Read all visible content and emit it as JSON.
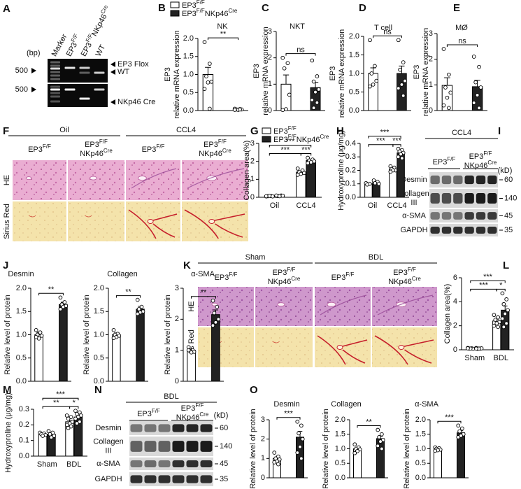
{
  "gel": {
    "panel": "A",
    "unit": "(bp)",
    "lanes": [
      [
        "Marker"
      ],
      [
        "EP3",
        "F/F"
      ],
      [
        "EP3",
        "F/F",
        "NKp46",
        "Cre"
      ],
      [
        "WT"
      ]
    ],
    "size_labels": [
      "500",
      "500"
    ],
    "band_labels": [
      "EP3 Flox",
      "WT",
      "NKp46 Cre"
    ]
  },
  "histology": [
    {
      "panel": "F",
      "groups": [
        "Oil",
        "CCL4"
      ],
      "columns": [
        [
          "EP3",
          "F/F"
        ],
        [
          "EP3",
          "F/F",
          "NKp46",
          "Cre"
        ],
        [
          "EP3",
          "F/F"
        ],
        [
          "EP3",
          "F/F",
          "NKp46",
          "Cre"
        ]
      ],
      "rows": [
        "HE",
        "Sirius Red"
      ]
    },
    {
      "panel": "K",
      "groups": [
        "Sham",
        "BDL"
      ],
      "columns": [
        [
          "EP3",
          "F/F"
        ],
        [
          "EP3",
          "F/F",
          "NKp46",
          "Cre"
        ],
        [
          "EP3",
          "F/F"
        ],
        [
          "EP3",
          "F/F",
          "NKp46",
          "Cre"
        ]
      ],
      "rows": [
        "HE",
        "Sirius Red"
      ]
    }
  ],
  "blots": [
    {
      "panel": "I",
      "group": "CCL4",
      "columns": [
        [
          "EP3",
          "F/F"
        ],
        [
          "EP3",
          "F/F",
          "NKp46",
          "Cre"
        ]
      ],
      "unit": "(kD)",
      "rows": [
        [
          "Desmin"
        ],
        [
          "Collagen",
          "III"
        ],
        [
          "α-SMA"
        ],
        [
          "GAPDH"
        ]
      ],
      "markers": [
        "60",
        "140",
        "45",
        "35"
      ]
    },
    {
      "panel": "N",
      "group": "BDL",
      "columns": [
        [
          "EP3",
          "F/F"
        ],
        [
          "EP3",
          "F/F",
          "NKp46",
          "Cre"
        ]
      ],
      "unit": "(kD)",
      "rows": [
        [
          "Desmin"
        ],
        [
          "Collagen",
          "III"
        ],
        [
          "α-SMA"
        ],
        [
          "GAPDH"
        ]
      ],
      "markers": [
        "60",
        "140",
        "45",
        "35"
      ]
    }
  ],
  "chart_data": [
    {
      "type": "bar",
      "panel": "B",
      "title": "NK",
      "ylabel": [
        "EP3",
        "relative mRNA expression"
      ],
      "legend": [
        [
          "EP3",
          "F/F"
        ],
        [
          "EP3",
          "F/F",
          "NKp46",
          "Cre"
        ]
      ],
      "ylim": [
        0,
        2
      ],
      "yticks": [
        {
          "value": 0,
          "label": "0.0"
        },
        0.5,
        {
          "value": 1,
          "label": "1.0"
        },
        1.5,
        {
          "value": 2,
          "label": "2.0"
        }
      ],
      "series": [
        {
          "color": "#ffffff",
          "values": [
            1.0
          ],
          "errors": [
            0.2
          ],
          "points": [
            [
              1.9,
              1.3,
              0.95,
              0.8,
              0.78,
              0.6,
              0.05
            ]
          ]
        },
        {
          "color": "#222222",
          "values": [
            0.03
          ],
          "errors": [
            0.01
          ],
          "points": [
            [
              0.05,
              0.04,
              0.03,
              0.03,
              0.02,
              0.02,
              0.03
            ]
          ]
        }
      ],
      "annotations": [
        "**"
      ]
    },
    {
      "type": "bar",
      "title": "NKT",
      "ylabel": [
        "EP3",
        "relative mRNA expression"
      ],
      "panel": "C",
      "ylim": [
        0,
        3
      ],
      "yticks": [
        0,
        1,
        2,
        3
      ],
      "series": [
        {
          "color": "#ffffff",
          "values": [
            1.0
          ],
          "errors": [
            0.35
          ],
          "points": [
            [
              2.0,
              1.8,
              1.6,
              0.6,
              0.05,
              0.02
            ]
          ]
        },
        {
          "color": "#222222",
          "values": [
            0.87
          ],
          "errors": [
            0.2
          ],
          "points": [
            [
              1.9,
              1.3,
              1.1,
              0.8,
              0.7,
              0.4,
              0.3,
              0.1
            ]
          ]
        }
      ],
      "annotations": [
        "ns"
      ]
    },
    {
      "type": "bar",
      "title": "T cell",
      "ylabel": [
        "EP3",
        "relative mRNA expression"
      ],
      "panel": "D",
      "ylim": [
        0,
        2
      ],
      "yticks": [
        {
          "value": 0,
          "label": "0.0"
        },
        0.5,
        {
          "value": 1,
          "label": "1.0"
        },
        1.5,
        {
          "value": 2,
          "label": "2.0"
        }
      ],
      "series": [
        {
          "color": "#ffffff",
          "values": [
            1.0
          ],
          "errors": [
            0.15
          ],
          "points": [
            [
              1.9,
              1.2,
              1.0,
              0.8,
              0.7,
              0.65
            ]
          ]
        },
        {
          "color": "#222222",
          "values": [
            1.0
          ],
          "errors": [
            0.2
          ],
          "points": [
            [
              1.9,
              1.3,
              1.1,
              0.8,
              0.7,
              0.6,
              0.4
            ]
          ]
        }
      ],
      "annotations": [
        "ns"
      ]
    },
    {
      "type": "bar",
      "title": "MØ",
      "ylabel": [
        "EP3",
        "relative mRNA expression"
      ],
      "panel": "E",
      "ylim": [
        0,
        3
      ],
      "yticks": [
        0,
        1,
        2,
        3
      ],
      "series": [
        {
          "color": "#ffffff",
          "values": [
            0.98
          ],
          "errors": [
            0.3
          ],
          "points": [
            [
              2.4,
              1.4,
              0.9,
              0.7,
              0.5,
              0.2,
              0.1
            ]
          ]
        },
        {
          "color": "#222222",
          "values": [
            0.93
          ],
          "errors": [
            0.25
          ],
          "points": [
            [
              2.1,
              1.7,
              1.1,
              0.9,
              0.6,
              0.3,
              0.1
            ]
          ]
        }
      ],
      "annotations": [
        "ns"
      ]
    },
    {
      "type": "bar",
      "panel": "G",
      "ylabel": [
        "Collagen area(%)"
      ],
      "legend": [
        [
          "EP3",
          "F/F"
        ],
        [
          "EP3",
          "F/F",
          "NKp46",
          "Cre"
        ]
      ],
      "categories": [
        "Oil",
        "CCL4"
      ],
      "ylim": [
        0,
        3
      ],
      "yticks": [
        0,
        1,
        2,
        3
      ],
      "series": [
        {
          "color": "#ffffff",
          "values": [
            0.06,
            1.4
          ],
          "errors": [
            0.01,
            0.06
          ],
          "points": [
            [
              0.05,
              0.07,
              0.06,
              0.05,
              0.08,
              0.06
            ],
            [
              1.6,
              1.5,
              1.4,
              1.35,
              1.3,
              1.25
            ]
          ]
        },
        {
          "color": "#222222",
          "values": [
            0.08,
            2.05
          ],
          "errors": [
            0.01,
            0.05
          ],
          "points": [
            [
              0.08,
              0.1,
              0.07,
              0.09,
              0.06,
              0.1
            ],
            [
              2.2,
              2.1,
              2.05,
              2.0,
              1.95,
              1.9
            ]
          ]
        }
      ],
      "annotations": [
        "***",
        "***",
        "***"
      ]
    },
    {
      "type": "bar",
      "panel": "H",
      "ylabel": [
        "Hydroxyproline (μg/mg)"
      ],
      "categories": [
        "Oil",
        "CCL4"
      ],
      "ylim": [
        0,
        0.4
      ],
      "yticks": [
        {
          "value": 0,
          "label": "0.0"
        },
        0.1,
        0.2,
        0.3,
        0.4
      ],
      "series": [
        {
          "color": "#ffffff",
          "values": [
            0.1,
            0.21
          ],
          "errors": [
            0.005,
            0.01
          ],
          "points": [
            [
              0.105,
              0.1,
              0.095
            ],
            [
              0.23,
              0.22,
              0.21,
              0.2,
              0.2,
              0.19
            ]
          ]
        },
        {
          "color": "#222222",
          "values": [
            0.11,
            0.33
          ],
          "errors": [
            0.01,
            0.01
          ],
          "points": [
            [
              0.125,
              0.115,
              0.105,
              0.1
            ],
            [
              0.36,
              0.35,
              0.34,
              0.33,
              0.32,
              0.3,
              0.29
            ]
          ]
        }
      ],
      "annotations": [
        "***",
        "***",
        "***"
      ]
    },
    {
      "type": "bar",
      "panel": "J",
      "title": "Desmin",
      "ylabel": [
        "Relative level of protein"
      ],
      "ylim": [
        0,
        2
      ],
      "yticks": [
        {
          "value": 0,
          "label": "0.0"
        },
        0.5,
        {
          "value": 1,
          "label": "1.0"
        },
        1.5,
        {
          "value": 2,
          "label": "2.0"
        }
      ],
      "series": [
        {
          "color": "#ffffff",
          "values": [
            1.0
          ],
          "errors": [
            0.05
          ],
          "points": [
            [
              1.1,
              1.05,
              1.0,
              0.98,
              0.92,
              0.95
            ]
          ]
        },
        {
          "color": "#222222",
          "values": [
            1.65
          ],
          "errors": [
            0.05
          ],
          "points": [
            [
              1.8,
              1.7,
              1.65,
              1.62,
              1.6,
              1.55
            ]
          ]
        }
      ],
      "annotations": [
        "**"
      ]
    },
    {
      "type": "bar",
      "title": "Collagen",
      "ylabel": [
        "Relative level of protein"
      ],
      "ylim": [
        0,
        2
      ],
      "yticks": [
        {
          "value": 0,
          "label": "0.0"
        },
        0.5,
        {
          "value": 1,
          "label": "1.0"
        },
        1.5,
        {
          "value": 2,
          "label": "2.0"
        }
      ],
      "series": [
        {
          "color": "#ffffff",
          "values": [
            1.0
          ],
          "errors": [
            0.04
          ],
          "points": [
            [
              1.1,
              1.02,
              1.0,
              0.98,
              0.95,
              0.93
            ]
          ]
        },
        {
          "color": "#222222",
          "values": [
            1.55
          ],
          "errors": [
            0.06
          ],
          "points": [
            [
              1.75,
              1.6,
              1.55,
              1.5,
              1.48,
              1.45
            ]
          ]
        }
      ],
      "annotations": [
        "**"
      ]
    },
    {
      "type": "bar",
      "title": "α-SMA",
      "ylabel": [
        "Relative level of protein"
      ],
      "ylim": [
        0,
        3
      ],
      "yticks": [
        0,
        1,
        2,
        3
      ],
      "series": [
        {
          "color": "#ffffff",
          "values": [
            1.0
          ],
          "errors": [
            0.04
          ],
          "points": [
            [
              1.1,
              1.0,
              0.98,
              0.95,
              0.93,
              1.0
            ]
          ]
        },
        {
          "color": "#222222",
          "values": [
            2.15
          ],
          "errors": [
            0.15
          ],
          "points": [
            [
              2.6,
              2.4,
              2.2,
              2.0,
              1.9,
              1.8
            ]
          ]
        }
      ],
      "annotations": [
        "**"
      ]
    },
    {
      "type": "bar",
      "panel": "L",
      "ylabel": [
        "Collagen area(%)"
      ],
      "categories": [
        "Sham",
        "BDL"
      ],
      "ylim": [
        0,
        6
      ],
      "yticks": [
        0,
        2,
        4,
        6
      ],
      "series": [
        {
          "color": "#ffffff",
          "values": [
            0.1,
            2.4
          ],
          "errors": [
            0.02,
            0.15
          ],
          "points": [
            [
              0.15,
              0.12,
              0.1,
              0.08,
              0.1,
              0.12
            ],
            [
              2.9,
              2.7,
              2.5,
              2.3,
              2.2,
              2.0,
              1.9
            ]
          ]
        },
        {
          "color": "#222222",
          "values": [
            0.1,
            3.3
          ],
          "errors": [
            0.02,
            0.35
          ],
          "points": [
            [
              0.15,
              0.1,
              0.08,
              0.12,
              0.1,
              0.1
            ],
            [
              4.7,
              4.2,
              3.8,
              3.3,
              3.0,
              2.6,
              2.2,
              1.9
            ]
          ]
        }
      ],
      "annotations": [
        "***",
        "***",
        "*"
      ]
    },
    {
      "type": "bar",
      "panel": "M",
      "ylabel": [
        "Hydroxyproline (μg/mg)"
      ],
      "categories": [
        "Sham",
        "BDL"
      ],
      "ylim": [
        0,
        0.3
      ],
      "yticks": [
        {
          "value": 0,
          "label": "0.0"
        },
        0.1,
        0.2,
        0.3
      ],
      "series": [
        {
          "color": "#ffffff",
          "values": [
            0.14,
            0.22
          ],
          "errors": [
            0.005,
            0.01
          ],
          "points": [
            [
              0.15,
              0.145,
              0.14,
              0.135,
              0.13
            ],
            [
              0.26,
              0.25,
              0.24,
              0.22,
              0.21,
              0.2,
              0.19,
              0.18
            ]
          ]
        },
        {
          "color": "#222222",
          "values": [
            0.14,
            0.25
          ],
          "errors": [
            0.01,
            0.01
          ],
          "points": [
            [
              0.16,
              0.15,
              0.14,
              0.13,
              0.12
            ],
            [
              0.29,
              0.28,
              0.27,
              0.26,
              0.25,
              0.24,
              0.22,
              0.21
            ]
          ]
        }
      ],
      "annotations": [
        "***",
        "**",
        "*"
      ]
    },
    {
      "type": "bar",
      "panel": "O",
      "title": "Desmin",
      "ylabel": [
        "Relative level of protein"
      ],
      "ylim": [
        0,
        3
      ],
      "yticks": [
        0,
        1,
        2,
        3
      ],
      "series": [
        {
          "color": "#ffffff",
          "values": [
            1.0
          ],
          "errors": [
            0.08
          ],
          "points": [
            [
              1.3,
              1.1,
              1.0,
              0.95,
              0.85,
              0.8,
              0.7
            ]
          ]
        },
        {
          "color": "#222222",
          "values": [
            2.1
          ],
          "errors": [
            0.3
          ],
          "points": [
            [
              2.9,
              2.7,
              2.3,
              2.0,
              1.6,
              1.3,
              1.0
            ]
          ]
        }
      ],
      "annotations": [
        "***"
      ]
    },
    {
      "type": "bar",
      "title": "Collagen",
      "ylabel": [
        "Relative level of protein"
      ],
      "ylim": [
        0,
        2
      ],
      "yticks": [
        {
          "value": 0,
          "label": "0.0"
        },
        0.5,
        {
          "value": 1,
          "label": "1.0"
        },
        1.5,
        {
          "value": 2,
          "label": "2.0"
        }
      ],
      "series": [
        {
          "color": "#ffffff",
          "values": [
            1.0
          ],
          "errors": [
            0.05
          ],
          "points": [
            [
              1.15,
              1.05,
              1.0,
              0.98,
              0.92,
              0.85
            ]
          ]
        },
        {
          "color": "#222222",
          "values": [
            1.35
          ],
          "errors": [
            0.08
          ],
          "points": [
            [
              1.65,
              1.5,
              1.4,
              1.3,
              1.25,
              1.1,
              1.0
            ]
          ]
        }
      ],
      "annotations": [
        "**"
      ]
    },
    {
      "type": "bar",
      "title": "α-SMA",
      "ylabel": [
        "Relative level of protein"
      ],
      "ylim": [
        0,
        2
      ],
      "yticks": [
        {
          "value": 0,
          "label": "0.0"
        },
        0.5,
        {
          "value": 1,
          "label": "1.0"
        },
        1.5,
        {
          "value": 2,
          "label": "2.0"
        }
      ],
      "series": [
        {
          "color": "#ffffff",
          "values": [
            1.0
          ],
          "errors": [
            0.03
          ],
          "points": [
            [
              1.05,
              1.02,
              1.0,
              0.97,
              0.95,
              0.93
            ]
          ]
        },
        {
          "color": "#222222",
          "values": [
            1.55
          ],
          "errors": [
            0.07
          ],
          "points": [
            [
              1.8,
              1.7,
              1.6,
              1.5,
              1.45,
              1.4
            ]
          ]
        }
      ],
      "annotations": [
        "***"
      ]
    }
  ]
}
